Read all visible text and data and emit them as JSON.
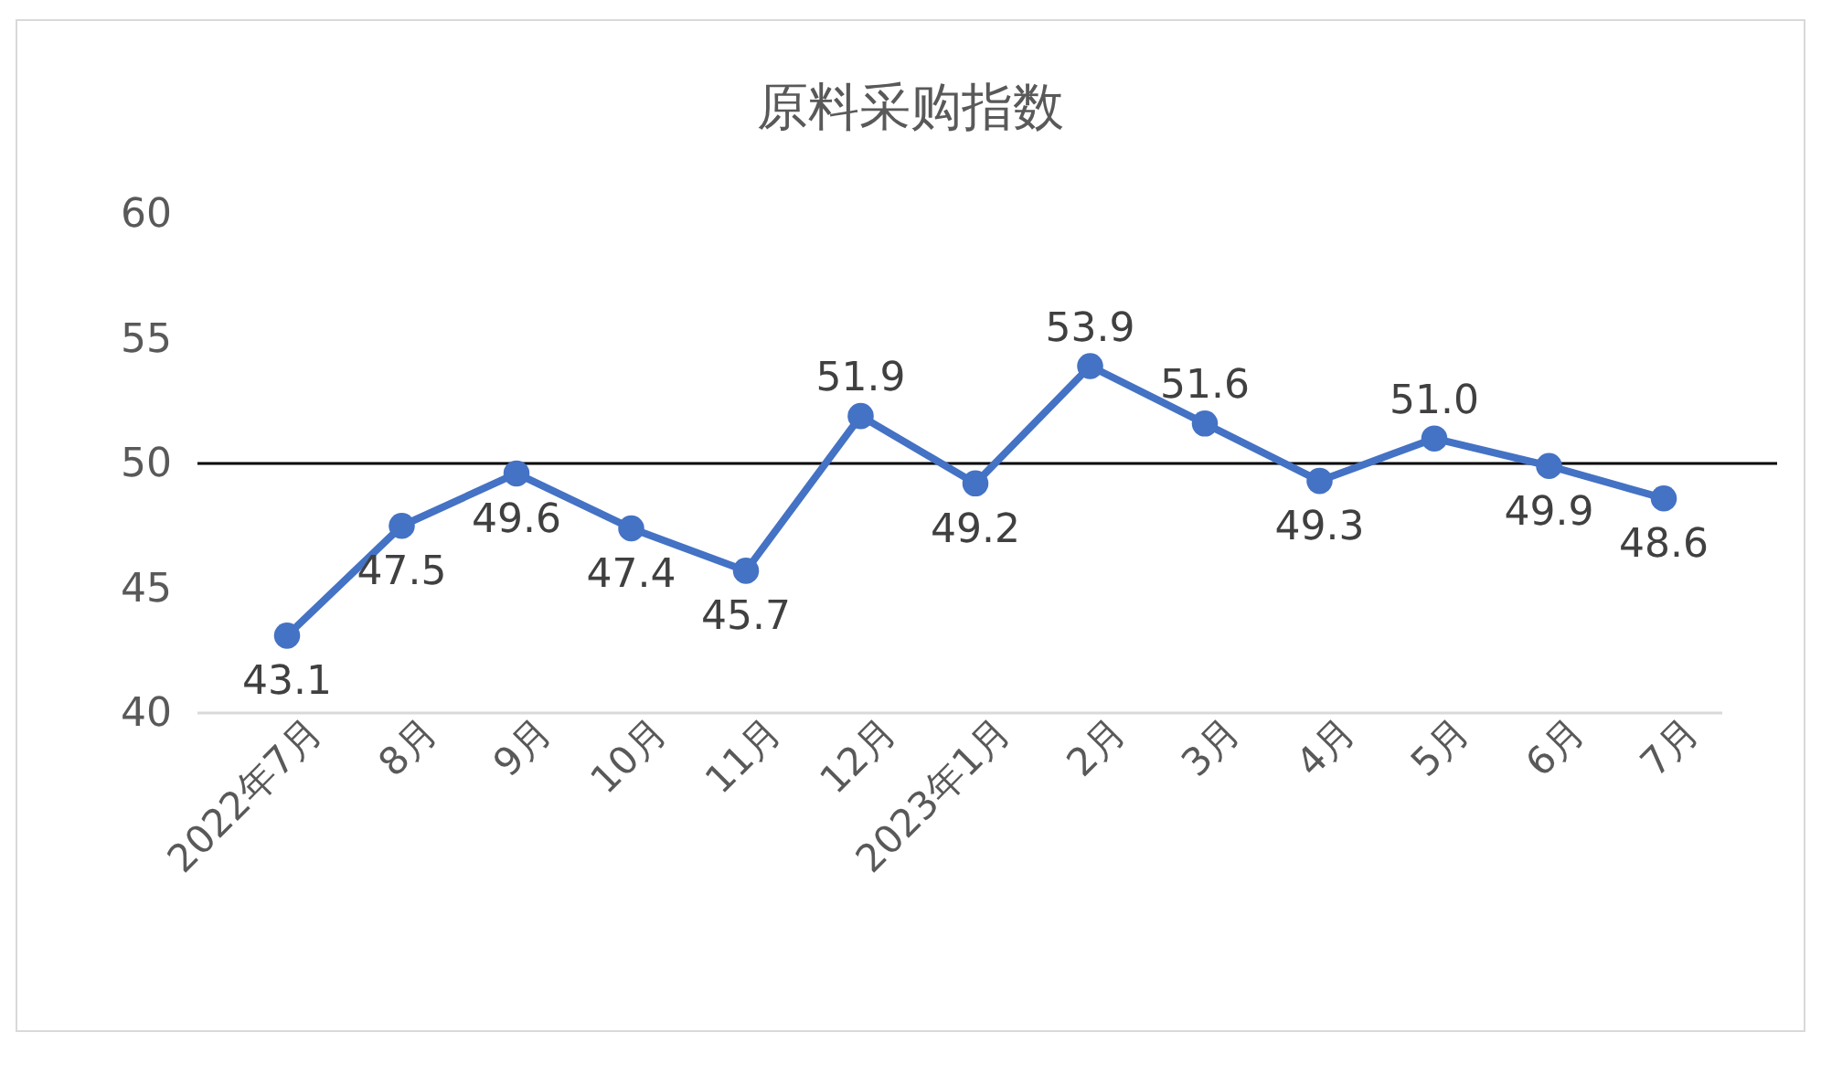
{
  "chart_data": {
    "type": "line",
    "title": "原料采购指数",
    "categories": [
      "2022年7月",
      "8月",
      "9月",
      "10月",
      "11月",
      "12月",
      "2023年1月",
      "2月",
      "3月",
      "4月",
      "5月",
      "6月",
      "7月"
    ],
    "series": [
      {
        "color": "#4472c4",
        "values": [
          43.1,
          47.5,
          49.6,
          47.4,
          45.7,
          51.9,
          49.2,
          53.9,
          51.6,
          49.3,
          51.0,
          49.9,
          48.6
        ]
      }
    ],
    "ylim": [
      40,
      60
    ],
    "yticks": [
      40,
      45,
      50,
      55,
      60
    ],
    "ref_lines": [
      {
        "axis": "y",
        "value": 50,
        "color": "#000000"
      }
    ],
    "value_labels": [
      "43.1",
      "47.5",
      "49.6",
      "47.4",
      "45.7",
      "51.9",
      "49.2",
      "53.9",
      "51.6",
      "49.3",
      "51.0",
      "49.9",
      "48.6"
    ],
    "marker": "circle",
    "grid": false
  }
}
